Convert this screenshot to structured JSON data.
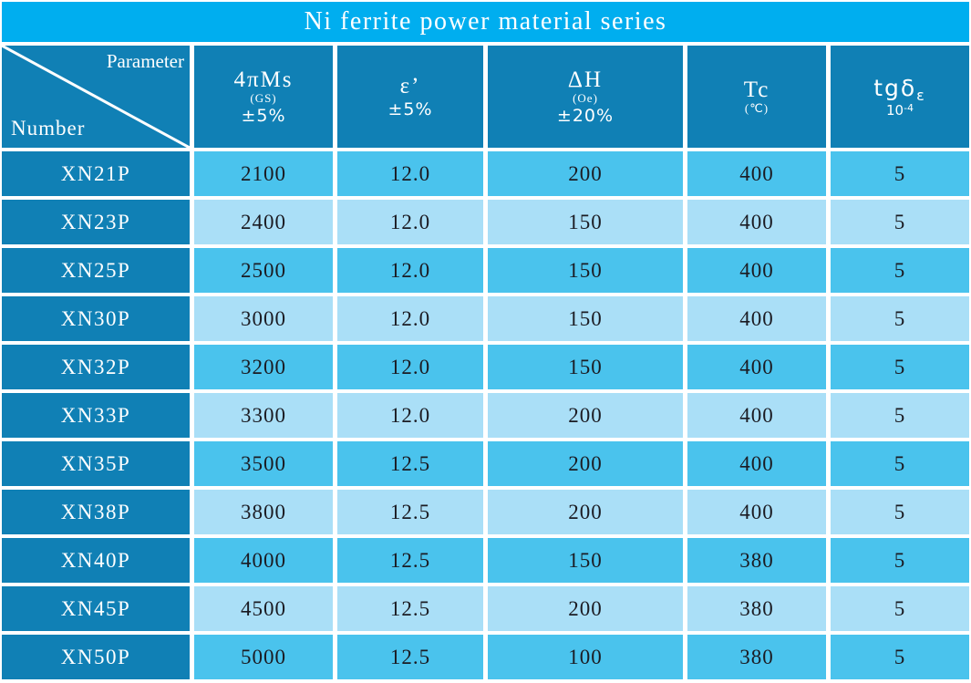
{
  "title": "Ni ferrite power material series",
  "colors": {
    "title_band": "#00AEEF",
    "header_and_number_cells": "#1080B5",
    "data_cell_medium": "#4AC3ED",
    "data_cell_pale": "#AADFF7",
    "grid_gap": "#FFFFFF",
    "header_text": "#FFFFFF",
    "data_text": "#1B1B22"
  },
  "header": {
    "corner": {
      "top_label": "Parameter",
      "bottom_label": "Number"
    },
    "columns": [
      {
        "main": "4πMs",
        "unit": "(GS)",
        "tolerance": "±5%"
      },
      {
        "main": "ε’",
        "unit": "",
        "tolerance": "±5%"
      },
      {
        "main": "ΔH",
        "unit": "(Oe)",
        "tolerance": "±20%"
      },
      {
        "main": "Tc",
        "unit": "(℃)",
        "tolerance": ""
      },
      {
        "main": "tgδ",
        "main_sub": "ε",
        "unit_base": "10",
        "unit_sup": "-4",
        "tolerance": ""
      }
    ]
  },
  "rows": [
    {
      "number": "XN21P",
      "values": [
        "2100",
        "12.0",
        "200",
        "400",
        "5"
      ]
    },
    {
      "number": "XN23P",
      "values": [
        "2400",
        "12.0",
        "150",
        "400",
        "5"
      ]
    },
    {
      "number": "XN25P",
      "values": [
        "2500",
        "12.0",
        "150",
        "400",
        "5"
      ]
    },
    {
      "number": "XN30P",
      "values": [
        "3000",
        "12.0",
        "150",
        "400",
        "5"
      ]
    },
    {
      "number": "XN32P",
      "values": [
        "3200",
        "12.0",
        "150",
        "400",
        "5"
      ]
    },
    {
      "number": "XN33P",
      "values": [
        "3300",
        "12.0",
        "200",
        "400",
        "5"
      ]
    },
    {
      "number": "XN35P",
      "values": [
        "3500",
        "12.5",
        "200",
        "400",
        "5"
      ]
    },
    {
      "number": "XN38P",
      "values": [
        "3800",
        "12.5",
        "200",
        "400",
        "5"
      ]
    },
    {
      "number": "XN40P",
      "values": [
        "4000",
        "12.5",
        "150",
        "380",
        "5"
      ]
    },
    {
      "number": "XN45P",
      "values": [
        "4500",
        "12.5",
        "200",
        "380",
        "5"
      ]
    },
    {
      "number": "XN50P",
      "values": [
        "5000",
        "12.5",
        "100",
        "380",
        "5"
      ]
    }
  ]
}
